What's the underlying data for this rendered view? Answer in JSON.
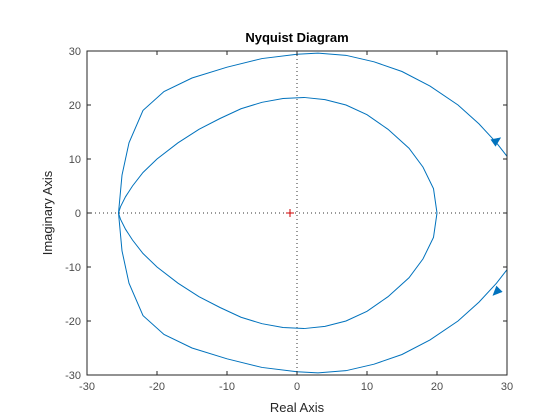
{
  "chart_data": {
    "type": "line",
    "title": "Nyquist Diagram",
    "xlabel": "Real Axis",
    "ylabel": "Imaginary Axis",
    "xlim": [
      -30,
      30
    ],
    "ylim": [
      -30,
      30
    ],
    "xticks": [
      -30,
      -20,
      -10,
      0,
      10,
      20,
      30
    ],
    "yticks": [
      -30,
      -20,
      -10,
      0,
      10,
      20,
      30
    ],
    "xtick_labels": [
      "-30",
      "-20",
      "-10",
      "0",
      "10",
      "20",
      "30"
    ],
    "ytick_labels": [
      "-30",
      "-20",
      "-10",
      "0",
      "10",
      "20",
      "30"
    ],
    "grid": false,
    "critical_point": [
      -1,
      0
    ],
    "series": [
      {
        "color": "#0072bd",
        "x": [
          20,
          19.5,
          18,
          16,
          13,
          10,
          7,
          4,
          1,
          -2,
          -5,
          -8,
          -11,
          -14,
          -17,
          -20,
          -22,
          -23.5,
          -24.5,
          -25.2,
          -25.5
        ],
        "y": [
          0,
          -4.5,
          -8.5,
          -12,
          -15.5,
          -18.2,
          -20,
          -21,
          -21.4,
          -21.2,
          -20.5,
          -19.3,
          -17.5,
          -15.5,
          -13,
          -10,
          -7.5,
          -5,
          -3,
          -1.2,
          0
        ]
      },
      {
        "color": "#0072bd",
        "x": [
          20,
          19.5,
          18,
          16,
          13,
          10,
          7,
          4,
          1,
          -2,
          -5,
          -8,
          -11,
          -14,
          -17,
          -20,
          -22,
          -23.5,
          -24.5,
          -25.2,
          -25.5
        ],
        "y": [
          0,
          4.5,
          8.5,
          12,
          15.5,
          18.2,
          20,
          21,
          21.4,
          21.2,
          20.5,
          19.3,
          17.5,
          15.5,
          13,
          10,
          7.5,
          5,
          3,
          1.2,
          0
        ]
      },
      {
        "color": "#0072bd",
        "x": [
          -25.5,
          -25,
          -24,
          -22,
          -19,
          -15,
          -10,
          -5,
          0,
          3,
          7,
          11,
          15,
          19,
          23,
          26,
          28.5,
          30
        ],
        "y": [
          0,
          -7,
          -13,
          -19,
          -22.5,
          -25,
          -27,
          -28.6,
          -29.4,
          -29.6,
          -29.2,
          -28,
          -26.2,
          -23.5,
          -20,
          -16.5,
          -13,
          -10.5
        ]
      },
      {
        "color": "#0072bd",
        "x": [
          -25.5,
          -25,
          -24,
          -22,
          -19,
          -15,
          -10,
          -5,
          0,
          3,
          7,
          11,
          15,
          19,
          23,
          26,
          28.5,
          30
        ],
        "y": [
          0,
          7,
          13,
          19,
          22.5,
          25,
          27,
          28.6,
          29.4,
          29.6,
          29.2,
          28,
          26.2,
          23.5,
          20,
          16.5,
          13,
          10.5
        ]
      }
    ],
    "arrows": [
      {
        "x": 28.5,
        "y": 13.4,
        "angle_deg": 35
      },
      {
        "x": 28.5,
        "y": -14.6,
        "angle_deg": 225
      }
    ]
  }
}
